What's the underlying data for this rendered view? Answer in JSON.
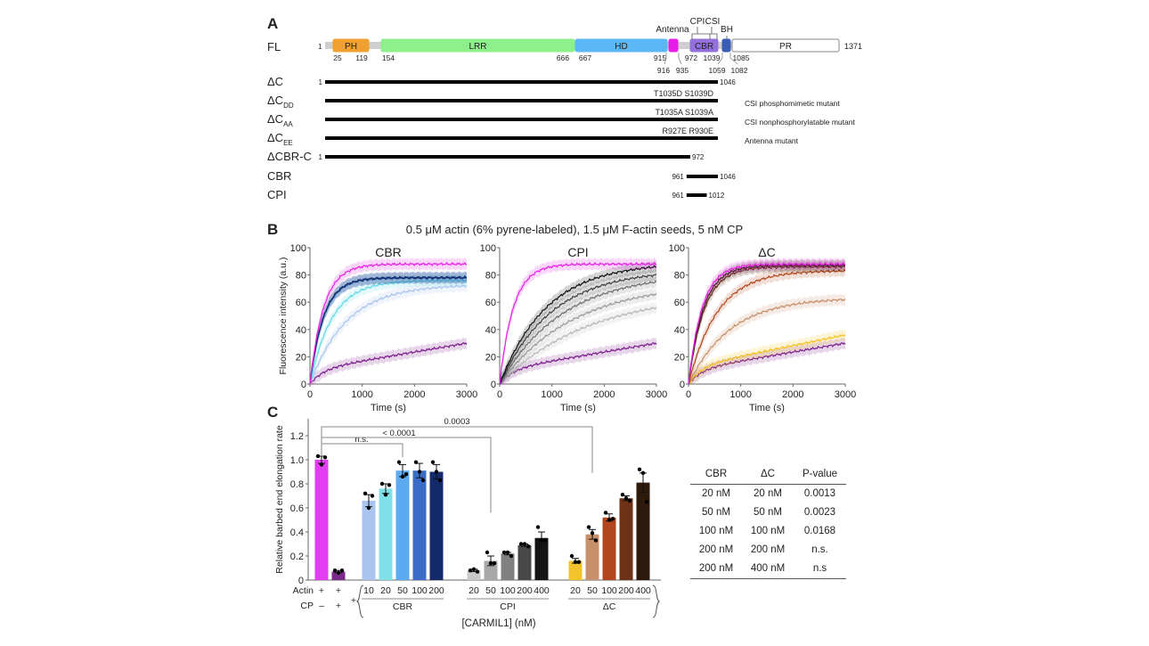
{
  "panel_a": {
    "label": "A",
    "fl": {
      "name": "FL",
      "length": 1371,
      "domains": [
        {
          "name": "PH",
          "start": 25,
          "end": 119,
          "color": "#f0a030",
          "text_color": "#222"
        },
        {
          "name": "LRR",
          "start": 154,
          "end": 666,
          "color": "#8ef08a",
          "text_color": "#222"
        },
        {
          "name": "HD",
          "start": 667,
          "end": 915,
          "color": "#5cb8f5",
          "text_color": "#ffffff"
        },
        {
          "name": "",
          "start": 916,
          "end": 935,
          "color": "#e81ee8",
          "text_color": "#222"
        },
        {
          "name": "CBR",
          "start": 972,
          "end": 1039,
          "color": "#9370db",
          "text_color": "#ffffff"
        },
        {
          "name": "",
          "start": 1059,
          "end": 1082,
          "color": "#3a5cb5",
          "text_color": "#222"
        },
        {
          "name": "PR",
          "start": 1085,
          "end": 1371,
          "color": "#ffffff",
          "text_color": "#222"
        }
      ],
      "position_labels": [
        "1",
        "25",
        "119",
        "154",
        "666",
        "667",
        "915",
        "916",
        "935",
        "972",
        "1039",
        "1059",
        "1082",
        "1085",
        "1371"
      ],
      "callouts": {
        "antenna": "Antenna",
        "cpi": "CPI",
        "csi": "CSI",
        "bh": "BH"
      }
    },
    "constructs": [
      {
        "name": "ΔC",
        "sub": "",
        "start": 1,
        "end": 1046,
        "start_label": "1",
        "end_label": "1046",
        "mutation": "",
        "note": ""
      },
      {
        "name": "ΔC",
        "sub": "DD",
        "start": 1,
        "end": 1046,
        "start_label": "",
        "end_label": "",
        "mutation": "T1035D  S1039D",
        "note": "CSI phosphomimetic mutant"
      },
      {
        "name": "ΔC",
        "sub": "AA",
        "start": 1,
        "end": 1046,
        "start_label": "",
        "end_label": "",
        "mutation": "T1035A  S1039A",
        "note": "CSI nonphosphorylatable mutant"
      },
      {
        "name": "ΔC",
        "sub": "EE",
        "start": 1,
        "end": 1046,
        "start_label": "",
        "end_label": "",
        "mutation": "R927E  R930E",
        "note": "Antenna mutant"
      },
      {
        "name": "ΔCBR-C",
        "sub": "",
        "start": 1,
        "end": 972,
        "start_label": "1",
        "end_label": "972",
        "mutation": "",
        "note": ""
      },
      {
        "name": "CBR",
        "sub": "",
        "start": 961,
        "end": 1046,
        "start_label": "961",
        "end_label": "1046",
        "mutation": "",
        "note": ""
      },
      {
        "name": "CPI",
        "sub": "",
        "start": 961,
        "end": 1012,
        "start_label": "961",
        "end_label": "1012",
        "mutation": "",
        "note": ""
      }
    ]
  },
  "panel_b": {
    "label": "B",
    "title": "0.5 μM actin (6% pyrene-labeled), 1.5 μM F-actin seeds, 5 nM CP"
  },
  "panel_c": {
    "label": "C",
    "row_labels": {
      "actin": "Actin",
      "cp": "CP"
    },
    "actin_marks": [
      "+",
      "+"
    ],
    "cp_marks": [
      "–",
      "+"
    ],
    "plus_label": "+",
    "xlabel": "[CARMIL1] (nM)",
    "significance": [
      {
        "label": "n.s."
      },
      {
        "label": "< 0.0001"
      },
      {
        "label": "0.0003"
      }
    ]
  },
  "pvalue_table": {
    "headers": [
      "CBR",
      "ΔC",
      "P-value"
    ],
    "rows": [
      [
        "20 nM",
        "20 nM",
        "0.0013"
      ],
      [
        "50 nM",
        "50 nM",
        "0.0023"
      ],
      [
        "100 nM",
        "100 nM",
        "0.0168"
      ],
      [
        "200 nM",
        "200 nM",
        "n.s."
      ],
      [
        "200 nM",
        "400 nM",
        "n.s"
      ]
    ]
  },
  "chart_data": [
    {
      "type": "line",
      "title": "CBR",
      "xlabel": "Time (s)",
      "ylabel": "Fluorescence intensity (a.u.)",
      "xlim": [
        0,
        3000
      ],
      "ylim": [
        0,
        100
      ],
      "x_ticks": [
        "0",
        "1000",
        "2000",
        "3000"
      ],
      "y_ticks": [
        "0",
        "20",
        "40",
        "60",
        "80",
        "100"
      ],
      "grid": false,
      "series": [
        {
          "name": "Actin",
          "color": "#e81ee8",
          "plateau": 88,
          "k": 0.0042,
          "drift": 0.0
        },
        {
          "name": "Actin + CP",
          "color": "#7b1e8c",
          "plateau": 30,
          "k": 0.0,
          "drift": 0.0
        },
        {
          "name": "CBR 10 nM",
          "color": "#a9c4ee",
          "plateau": 72,
          "k": 0.0012,
          "drift": 0.0
        },
        {
          "name": "CBR 20 nM",
          "color": "#5fd8e6",
          "plateau": 76,
          "k": 0.0022,
          "drift": 0.0
        },
        {
          "name": "CBR 50 nM",
          "color": "#4fa0e8",
          "plateau": 78,
          "k": 0.0038,
          "drift": 0.0
        },
        {
          "name": "CBR 100 nM",
          "color": "#3a6cc8",
          "plateau": 78,
          "k": 0.004,
          "drift": 0.0
        },
        {
          "name": "CBR 200 nM",
          "color": "#14275e",
          "plateau": 78,
          "k": 0.0042,
          "drift": 0.0
        }
      ]
    },
    {
      "type": "line",
      "title": "CPI",
      "xlabel": "Time (s)",
      "ylabel": "",
      "xlim": [
        0,
        3000
      ],
      "ylim": [
        0,
        100
      ],
      "x_ticks": [
        "0",
        "1000",
        "2000",
        "3000"
      ],
      "y_ticks": [
        "0",
        "20",
        "40",
        "60",
        "80",
        "100"
      ],
      "grid": false,
      "series": [
        {
          "name": "Actin",
          "color": "#e81ee8",
          "plateau": 88,
          "k": 0.0042,
          "drift": 0.0
        },
        {
          "name": "Actin + CP",
          "color": "#7b1e8c",
          "plateau": 30,
          "k": 0.0,
          "drift": 0.0
        },
        {
          "name": "CPI 20 nM",
          "color": "#b8b8b8",
          "plateau": 56,
          "k": 0.0,
          "drift": 0.0
        },
        {
          "name": "CPI 50 nM",
          "color": "#9a9a9a",
          "plateau": 66,
          "k": 0.0,
          "drift": 0.0
        },
        {
          "name": "CPI 100 nM",
          "color": "#707070",
          "plateau": 75,
          "k": 0.0,
          "drift": 0.0
        },
        {
          "name": "CPI 200 nM",
          "color": "#404040",
          "plateau": 80,
          "k": 0.0,
          "drift": 0.0
        },
        {
          "name": "CPI 400 nM",
          "color": "#111111",
          "plateau": 86,
          "k": 0.0,
          "drift": 0.0
        }
      ]
    },
    {
      "type": "line",
      "title": "ΔC",
      "xlabel": "Time (s)",
      "ylabel": "",
      "xlim": [
        0,
        3000
      ],
      "ylim": [
        0,
        100
      ],
      "x_ticks": [
        "0",
        "1000",
        "2000",
        "3000"
      ],
      "y_ticks": [
        "0",
        "20",
        "40",
        "60",
        "80",
        "100"
      ],
      "grid": false,
      "series": [
        {
          "name": "Actin",
          "color": "#e81ee8",
          "plateau": 88,
          "k": 0.0042,
          "drift": 0.0
        },
        {
          "name": "Actin + CP",
          "color": "#7b1e8c",
          "plateau": 30,
          "k": 0.0,
          "drift": 0.0
        },
        {
          "name": "ΔC 20 nM",
          "color": "#f2c01e",
          "plateau": 36,
          "k": 0.0,
          "drift": 0.0
        },
        {
          "name": "ΔC 50 nM",
          "color": "#c8906a",
          "plateau": 62,
          "k": 0.0,
          "drift": 0.0
        },
        {
          "name": "ΔC 100 nM",
          "color": "#b2471e",
          "plateau": 83,
          "k": 0.0,
          "drift": 0.0
        },
        {
          "name": "ΔC 200 nM",
          "color": "#6e3216",
          "plateau": 86,
          "k": 0.0,
          "drift": 0.0
        },
        {
          "name": "ΔC 400 nM",
          "color": "#2e1a0c",
          "plateau": 87,
          "k": 0.0,
          "drift": 0.0
        }
      ]
    },
    {
      "type": "bar",
      "title": "",
      "xlabel": "[CARMIL1] (nM)",
      "ylabel": "Relative barbed end elongation rate",
      "ylim": [
        0,
        1.3
      ],
      "y_ticks": [
        "0",
        "0.2",
        "0.4",
        "0.6",
        "0.8",
        "1.0",
        "1.2"
      ],
      "groups": [
        {
          "name": "",
          "bars": [
            {
              "label": "",
              "value": 1.0,
              "sem": 0.03,
              "points": [
                1.03,
                0.96,
                1.02
              ],
              "color": "#e03ef0"
            },
            {
              "label": "",
              "value": 0.07,
              "sem": 0.01,
              "points": [
                0.08,
                0.06,
                0.08
              ],
              "color": "#7b2a8c"
            }
          ]
        },
        {
          "name": "CBR",
          "bars": [
            {
              "label": "10",
              "value": 0.66,
              "sem": 0.05,
              "points": [
                0.72,
                0.6,
                0.7
              ],
              "color": "#a9c4ee"
            },
            {
              "label": "20",
              "value": 0.76,
              "sem": 0.04,
              "points": [
                0.8,
                0.71,
                0.79
              ],
              "color": "#7fe0e8"
            },
            {
              "label": "50",
              "value": 0.91,
              "sem": 0.05,
              "points": [
                0.98,
                0.86,
                0.88
              ],
              "color": "#5caaf0"
            },
            {
              "label": "100",
              "value": 0.91,
              "sem": 0.06,
              "points": [
                0.98,
                0.9,
                0.83
              ],
              "color": "#3a6cc8"
            },
            {
              "label": "200",
              "value": 0.9,
              "sem": 0.06,
              "points": [
                0.98,
                0.9,
                0.83
              ],
              "color": "#142a6a"
            }
          ]
        },
        {
          "name": "CPI",
          "bars": [
            {
              "label": "20",
              "value": 0.08,
              "sem": 0.01,
              "points": [
                0.08,
                0.09,
                0.07
              ],
              "color": "#c8c8c8"
            },
            {
              "label": "50",
              "value": 0.16,
              "sem": 0.04,
              "points": [
                0.23,
                0.14,
                0.14
              ],
              "color": "#a8a8a8"
            },
            {
              "label": "100",
              "value": 0.22,
              "sem": 0.01,
              "points": [
                0.23,
                0.23,
                0.2
              ],
              "color": "#808080"
            },
            {
              "label": "200",
              "value": 0.29,
              "sem": 0.01,
              "points": [
                0.3,
                0.3,
                0.28
              ],
              "color": "#484848"
            },
            {
              "label": "400",
              "value": 0.35,
              "sem": 0.05,
              "points": [
                0.44,
                0.33,
                0.33
              ],
              "color": "#141414"
            }
          ]
        },
        {
          "name": "ΔC",
          "bars": [
            {
              "label": "20",
              "value": 0.16,
              "sem": 0.02,
              "points": [
                0.2,
                0.15,
                0.15
              ],
              "color": "#f2c42a"
            },
            {
              "label": "50",
              "value": 0.38,
              "sem": 0.04,
              "points": [
                0.44,
                0.39,
                0.33
              ],
              "color": "#c8906a"
            },
            {
              "label": "100",
              "value": 0.52,
              "sem": 0.03,
              "points": [
                0.56,
                0.5,
                0.51
              ],
              "color": "#b2471e"
            },
            {
              "label": "200",
              "value": 0.68,
              "sem": 0.02,
              "points": [
                0.71,
                0.68,
                0.66
              ],
              "color": "#6e3216"
            },
            {
              "label": "400",
              "value": 0.81,
              "sem": 0.08,
              "points": [
                0.92,
                0.89,
                0.65
              ],
              "color": "#2e1a0c"
            }
          ]
        }
      ]
    }
  ]
}
